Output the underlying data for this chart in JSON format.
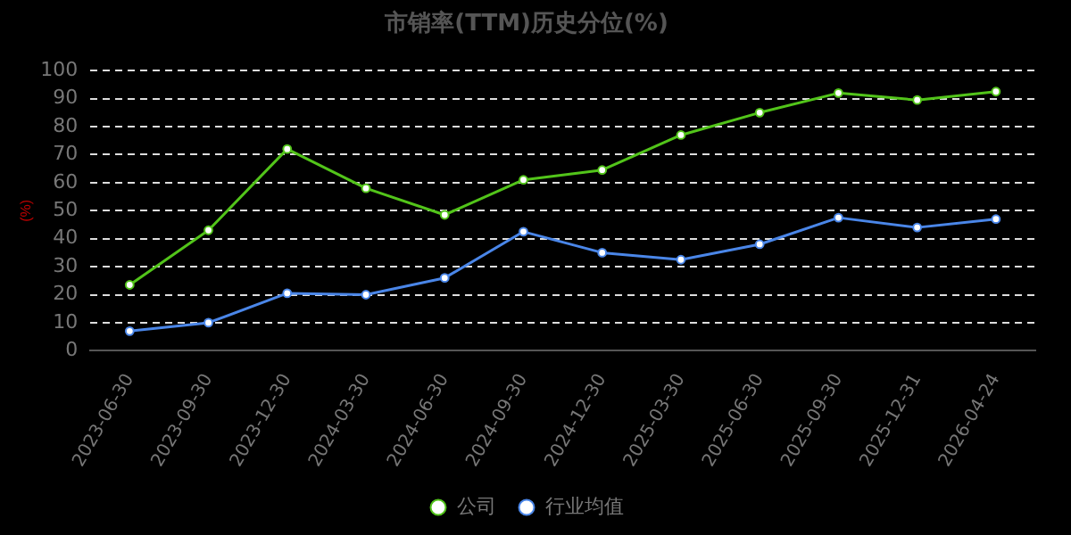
{
  "chart_data": {
    "type": "line",
    "title": "市销率(TTM)历史分位(%)",
    "ylabel": "(%)",
    "categories": [
      "2023-06-30",
      "2023-09-30",
      "2023-12-30",
      "2024-03-30",
      "2024-06-30",
      "2024-09-30",
      "2024-12-30",
      "2025-03-30",
      "2025-06-30",
      "2025-09-30",
      "2025-12-31",
      "2026-04-24"
    ],
    "series": [
      {
        "name": "公司",
        "color": "#52c41a",
        "values": [
          23.5,
          43,
          72,
          58,
          48.5,
          61,
          64.5,
          77,
          85,
          92,
          89.5,
          92.5
        ]
      },
      {
        "name": "行业均值",
        "color": "#4a86e8",
        "values": [
          7,
          10,
          20.5,
          20,
          26,
          42.5,
          35,
          32.5,
          38,
          47.5,
          44,
          47
        ]
      }
    ],
    "ylim": [
      0,
      100
    ],
    "yticks": [
      0,
      10,
      20,
      30,
      40,
      50,
      60,
      70,
      80,
      90,
      100
    ],
    "grid": "y",
    "legend": "bottom",
    "marker": "circle",
    "line_style": "solid"
  }
}
